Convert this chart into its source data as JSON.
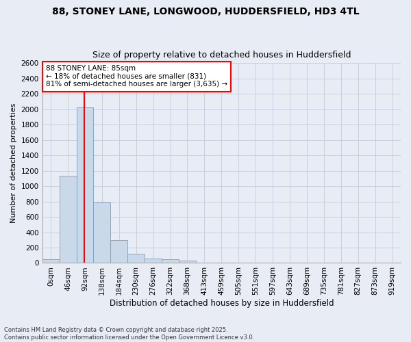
{
  "title": "88, STONEY LANE, LONGWOOD, HUDDERSFIELD, HD3 4TL",
  "subtitle": "Size of property relative to detached houses in Huddersfield",
  "xlabel": "Distribution of detached houses by size in Huddersfield",
  "ylabel": "Number of detached properties",
  "categories": [
    "0sqm",
    "46sqm",
    "92sqm",
    "138sqm",
    "184sqm",
    "230sqm",
    "276sqm",
    "322sqm",
    "368sqm",
    "413sqm",
    "459sqm",
    "505sqm",
    "551sqm",
    "597sqm",
    "643sqm",
    "689sqm",
    "735sqm",
    "781sqm",
    "827sqm",
    "873sqm",
    "919sqm"
  ],
  "values": [
    50,
    1130,
    2020,
    790,
    300,
    120,
    55,
    50,
    30,
    0,
    0,
    0,
    0,
    0,
    0,
    0,
    0,
    0,
    0,
    0,
    0
  ],
  "bar_color": "#c9d9ea",
  "bar_edge_color": "#7aa0c0",
  "vline_x": 1.95,
  "vline_color": "red",
  "annotation_text": "88 STONEY LANE: 85sqm\n← 18% of detached houses are smaller (831)\n81% of semi-detached houses are larger (3,635) →",
  "annotation_box_color": "white",
  "annotation_box_edge": "red",
  "ylim": [
    0,
    2600
  ],
  "yticks": [
    0,
    200,
    400,
    600,
    800,
    1000,
    1200,
    1400,
    1600,
    1800,
    2000,
    2200,
    2400,
    2600
  ],
  "grid_color": "#c8d0e0",
  "background_color": "#e8edf5",
  "axes_background": "#e8edf5",
  "footnote": "Contains HM Land Registry data © Crown copyright and database right 2025.\nContains public sector information licensed under the Open Government Licence v3.0.",
  "title_fontsize": 10,
  "subtitle_fontsize": 9,
  "xlabel_fontsize": 8.5,
  "ylabel_fontsize": 8,
  "tick_fontsize": 7.5,
  "annotation_fontsize": 7.5,
  "footnote_fontsize": 6
}
